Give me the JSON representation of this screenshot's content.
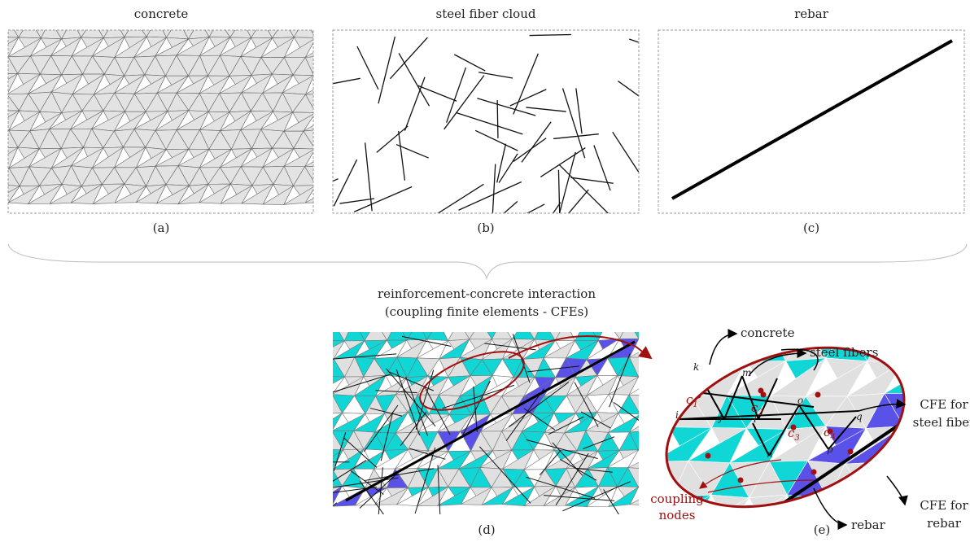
{
  "panels": [
    {
      "title": "concrete",
      "caption": "(a)"
    },
    {
      "title": "steel fiber cloud",
      "caption": "(b)"
    },
    {
      "title": "rebar",
      "caption": "(c)"
    }
  ],
  "interaction": {
    "title_lines": [
      "reinforcement-concrete interaction",
      "(coupling finite elements - CFEs)"
    ],
    "caption": "(d)"
  },
  "detail": {
    "caption": "(e)",
    "concrete": "concrete",
    "steel_fibers": "steel fibers",
    "cfe_fiber": [
      "CFE for",
      "steel fiber"
    ],
    "cfe_rebar": [
      "CFE for",
      "rebar"
    ],
    "rebar": "rebar",
    "coupling": [
      "coupling",
      "nodes"
    ],
    "nodes": [
      "k",
      "m",
      "i",
      "j",
      "l",
      "n",
      "o",
      "p",
      "q"
    ],
    "centroids": [
      {
        "base": "c",
        "sub": "1"
      },
      {
        "base": "c",
        "sub": "2"
      },
      {
        "base": "c",
        "sub": "3"
      },
      {
        "base": "c",
        "sub": "4"
      }
    ]
  }
}
